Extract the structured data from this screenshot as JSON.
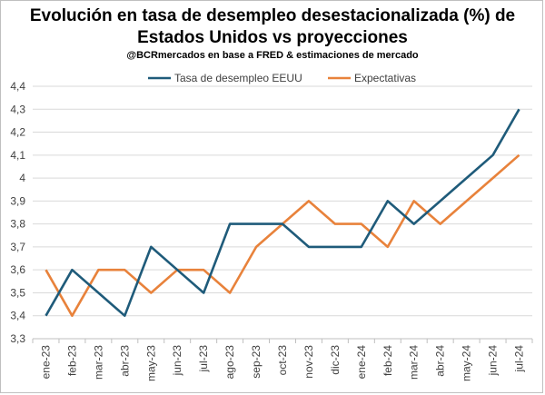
{
  "chart_data": {
    "type": "line",
    "title_line1": "Evolución en tasa de desempleo desestacionalizada (%) de",
    "title_line2": "Estados Unidos vs proyecciones",
    "subtitle": "@BCRmercados en base a FRED & estimaciones de mercado",
    "categories": [
      "ene-23",
      "feb-23",
      "mar-23",
      "abr-23",
      "may-23",
      "jun-23",
      "jul-23",
      "ago-23",
      "sep-23",
      "oct-23",
      "nov-23",
      "dic-23",
      "ene-24",
      "feb-24",
      "mar-24",
      "abr-24",
      "may-24",
      "jun-24",
      "jul-24"
    ],
    "series": [
      {
        "name": "Tasa de desempleo EEUU",
        "color": "#1f5b7a",
        "values": [
          3.4,
          3.6,
          3.5,
          3.4,
          3.7,
          3.6,
          3.5,
          3.8,
          3.8,
          3.8,
          3.7,
          3.7,
          3.7,
          3.9,
          3.8,
          3.9,
          4.0,
          4.1,
          4.3
        ]
      },
      {
        "name": "Expectativas",
        "color": "#e8823b",
        "values": [
          3.6,
          3.4,
          3.6,
          3.6,
          3.5,
          3.6,
          3.6,
          3.5,
          3.7,
          3.8,
          3.9,
          3.8,
          3.8,
          3.7,
          3.9,
          3.8,
          3.9,
          4.0,
          4.1
        ]
      }
    ],
    "y_ticks": [
      "3,3",
      "3,4",
      "3,5",
      "3,6",
      "3,7",
      "3,8",
      "3,9",
      "4",
      "4,1",
      "4,2",
      "4,3",
      "4,4"
    ],
    "ylim": [
      3.3,
      4.4
    ],
    "grid": true,
    "legend_position": "top"
  }
}
